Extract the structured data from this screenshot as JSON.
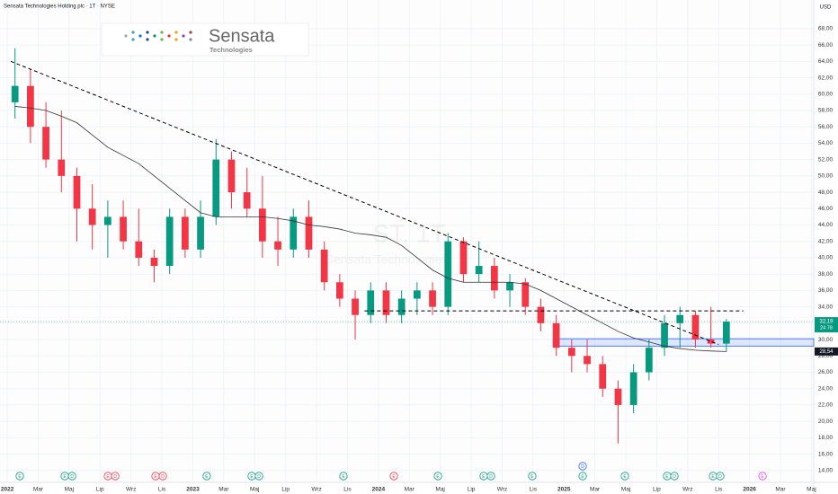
{
  "chart_data": {
    "type": "candlestick",
    "title": "Sensata Technologies Holding plc · 1T · NYSE",
    "currency": "USD",
    "logo": {
      "name": "Sensata",
      "subtitle": "Technologies"
    },
    "watermark": {
      "symbol": "ST, 1T",
      "name": "Sensata Technologies"
    },
    "x": [
      0.5,
      1.5,
      2.5,
      3.5,
      4.5,
      5.5,
      6.5,
      7.5,
      8.5,
      9.5,
      10.5,
      11.5,
      12.5,
      13.5,
      14.5,
      15.5,
      16.5,
      17.5,
      18.5,
      19.5,
      20.5,
      21.5,
      22.5,
      23.5,
      24.5,
      25.5,
      26.5,
      27.5,
      28.5,
      29.5,
      30.5,
      31.5,
      32.5,
      33.5,
      34.5,
      35.5,
      36.5,
      37.5,
      38.5,
      39.5,
      40.5,
      41.5,
      42.5,
      43.5,
      44.5,
      45.5,
      46.5
    ],
    "open": [
      59,
      61,
      56,
      52,
      50,
      46,
      44,
      45,
      42,
      40,
      39,
      45,
      41,
      45,
      52,
      48,
      46,
      42,
      41,
      45,
      41,
      37,
      35,
      33,
      36,
      33,
      35,
      36,
      34,
      42,
      38,
      39,
      36,
      37,
      34,
      32,
      29,
      28,
      27,
      24,
      22,
      26,
      29,
      32,
      33,
      30,
      29.5
    ],
    "high": [
      65.6,
      63,
      59,
      58,
      51,
      49,
      47,
      47,
      46,
      41,
      46,
      46,
      47,
      54.5,
      53,
      51,
      50,
      45,
      46,
      47,
      42,
      38,
      36,
      37,
      37,
      36,
      37,
      37,
      43,
      42.5,
      42,
      40,
      38,
      37.5,
      35,
      33,
      30,
      30,
      28,
      25,
      27,
      30,
      33,
      34,
      33.5,
      34,
      32.5
    ],
    "low": [
      57,
      54,
      51,
      48,
      42,
      41,
      40,
      41,
      39,
      37,
      38,
      40,
      40,
      44,
      46,
      45,
      40,
      39,
      40,
      40,
      36,
      34,
      30,
      32,
      32,
      32,
      33,
      33,
      33,
      37,
      37,
      35,
      34,
      33,
      31,
      28,
      26,
      26,
      23,
      17.3,
      21,
      25,
      28,
      29,
      29,
      29,
      28.5
    ],
    "close": [
      61,
      56,
      52,
      50,
      46,
      44,
      45,
      42,
      40,
      39,
      45,
      41,
      45,
      52,
      48,
      46,
      42,
      41,
      45,
      41,
      37,
      35,
      33,
      36,
      33,
      35,
      36,
      34,
      42,
      38,
      39,
      36,
      37,
      34,
      32,
      29,
      28,
      27,
      24,
      22,
      26,
      29,
      32,
      33,
      30,
      29.5,
      32.19
    ],
    "ma": [
      58.5,
      58.3,
      58,
      57.3,
      56.5,
      55,
      53.5,
      52.5,
      51.5,
      50,
      48.5,
      47,
      45.5,
      45,
      45,
      45,
      45,
      44.8,
      44.5,
      44,
      43.8,
      43.5,
      43,
      42.8,
      42.5,
      41.5,
      40,
      38.5,
      37.5,
      37,
      37,
      37,
      37,
      36.8,
      36,
      35,
      34,
      33,
      32,
      31,
      30.2,
      29.7,
      29.2,
      28.9,
      28.7,
      28.6,
      28.54
    ],
    "up_color": "#089981",
    "down_color": "#f23645",
    "ma_color": "#333333",
    "xlim": [
      -0.47,
      52.15
    ],
    "ylim": [
      12.55,
      71.5
    ],
    "xticks": [
      {
        "value": 0,
        "label": "2022"
      },
      {
        "value": 2,
        "label": "Mar"
      },
      {
        "value": 4,
        "label": "Maj"
      },
      {
        "value": 6,
        "label": "Lip"
      },
      {
        "value": 8,
        "label": "Wrz"
      },
      {
        "value": 10,
        "label": "Lis"
      },
      {
        "value": 12,
        "label": "2023"
      },
      {
        "value": 14,
        "label": "Mar"
      },
      {
        "value": 16,
        "label": "Maj"
      },
      {
        "value": 18,
        "label": "Lip"
      },
      {
        "value": 20,
        "label": "Wrz"
      },
      {
        "value": 22,
        "label": "Lis"
      },
      {
        "value": 24,
        "label": "2024"
      },
      {
        "value": 26,
        "label": "Mar"
      },
      {
        "value": 28,
        "label": "Maj"
      },
      {
        "value": 30,
        "label": "Lip"
      },
      {
        "value": 32,
        "label": "Wrz"
      },
      {
        "value": 34,
        "label": "Lis"
      },
      {
        "value": 36,
        "label": "2025"
      },
      {
        "value": 38,
        "label": "Mar"
      },
      {
        "value": 40,
        "label": "Maj"
      },
      {
        "value": 42,
        "label": "Lip"
      },
      {
        "value": 44,
        "label": "Wrz"
      },
      {
        "value": 46,
        "label": "Lis"
      },
      {
        "value": 48,
        "label": "2026"
      },
      {
        "value": 50,
        "label": "Mar"
      },
      {
        "value": 52,
        "label": "Maj"
      }
    ],
    "yticks": [
      {
        "value": 14,
        "label": "14,00"
      },
      {
        "value": 16,
        "label": "16,00"
      },
      {
        "value": 18,
        "label": "18,00"
      },
      {
        "value": 20,
        "label": "20,00"
      },
      {
        "value": 22,
        "label": "22,00"
      },
      {
        "value": 24,
        "label": "24,00"
      },
      {
        "value": 26,
        "label": "26,00"
      },
      {
        "value": 28,
        "label": "28,00"
      },
      {
        "value": 30,
        "label": "30,00"
      },
      {
        "value": 32,
        "label": "32,00"
      },
      {
        "value": 34,
        "label": "34,00"
      },
      {
        "value": 36,
        "label": "36,00"
      },
      {
        "value": 38,
        "label": "38,00"
      },
      {
        "value": 40,
        "label": "40,00"
      },
      {
        "value": 42,
        "label": "42,00"
      },
      {
        "value": 44,
        "label": "44,00"
      },
      {
        "value": 46,
        "label": "46,00"
      },
      {
        "value": 48,
        "label": "48,00"
      },
      {
        "value": 50,
        "label": "50,00"
      },
      {
        "value": 52,
        "label": "52,00"
      },
      {
        "value": 54,
        "label": "54,00"
      },
      {
        "value": 56,
        "label": "56,00"
      },
      {
        "value": 58,
        "label": "58,00"
      },
      {
        "value": 60,
        "label": "60,00"
      },
      {
        "value": 62,
        "label": "62,00"
      },
      {
        "value": 64,
        "label": "64,00"
      },
      {
        "value": 66,
        "label": "66,00"
      },
      {
        "value": 68,
        "label": "68,00"
      }
    ],
    "last_price": {
      "value": 32.19,
      "label": "32,19",
      "countdown": "24 78"
    },
    "ma_last": {
      "value": 28.54,
      "label": "28,54"
    },
    "trendlines": [
      {
        "x": [
          0.23,
          46
        ],
        "y": [
          64,
          29.4
        ]
      },
      {
        "x": [
          23.1,
          47.6
        ],
        "y": [
          33.5,
          33.5
        ]
      }
    ],
    "zone": {
      "x": [
        35.3,
        52.15
      ],
      "y": [
        29.2,
        30.1
      ],
      "color": "#2962ff"
    },
    "events": [
      {
        "x": 0.81,
        "label": "E",
        "color": "#089981"
      },
      {
        "x": 3.72,
        "label": "E",
        "color": "#089981"
      },
      {
        "x": 4.19,
        "label": "D",
        "color": "#089981"
      },
      {
        "x": 6.51,
        "label": "E",
        "color": "#f23645"
      },
      {
        "x": 6.98,
        "label": "D",
        "color": "#f23645"
      },
      {
        "x": 9.59,
        "label": "E",
        "color": "#f23645"
      },
      {
        "x": 10.06,
        "label": "D",
        "color": "#f23645"
      },
      {
        "x": 12.9,
        "label": "E",
        "color": "#089981"
      },
      {
        "x": 15.81,
        "label": "E",
        "color": "#089981"
      },
      {
        "x": 16.28,
        "label": "D",
        "color": "#089981"
      },
      {
        "x": 21.74,
        "label": "E",
        "color": "#089981"
      },
      {
        "x": 25,
        "label": "E",
        "color": "#f23645"
      },
      {
        "x": 27.85,
        "label": "E",
        "color": "#089981"
      },
      {
        "x": 30.81,
        "label": "E",
        "color": "#089981"
      },
      {
        "x": 31.28,
        "label": "D",
        "color": "#089981"
      },
      {
        "x": 33.95,
        "label": "E",
        "color": "#089981"
      },
      {
        "x": 37.21,
        "label": "E",
        "color": "#089981"
      },
      {
        "x": 37.21,
        "label": "D",
        "color": "#2962ff"
      },
      {
        "x": 39.94,
        "label": "E",
        "color": "#089981"
      },
      {
        "x": 42.67,
        "label": "E",
        "color": "#089981"
      },
      {
        "x": 43.14,
        "label": "D",
        "color": "#089981"
      },
      {
        "x": 45.64,
        "label": "E",
        "color": "#089981"
      },
      {
        "x": 46.1,
        "label": "D",
        "color": "#089981"
      },
      {
        "x": 48.84,
        "label": "E",
        "color": "#e040fb"
      }
    ]
  }
}
